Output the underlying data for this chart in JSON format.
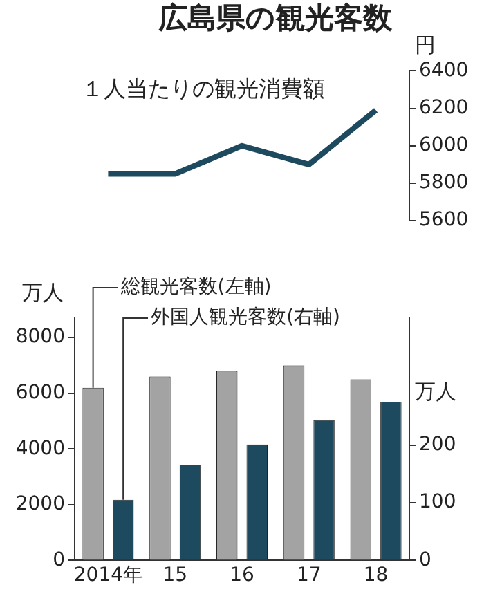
{
  "chart_data": [
    {
      "type": "line",
      "title": "広島県の観光客数",
      "subtitle": "１人当たりの観光消費額",
      "ylabel": "円",
      "categories": [
        null,
        null,
        null,
        null,
        null
      ],
      "series": [
        {
          "color": "#1d4a5e",
          "values": [
            5850,
            5850,
            6000,
            5900,
            6190
          ]
        }
      ],
      "ylim": [
        5600,
        6400
      ],
      "yticks": [
        5600,
        5800,
        6000,
        6200,
        6400
      ],
      "tick_labels": "y",
      "grid": false,
      "legend": false,
      "marker": "none",
      "line_style": "solid"
    },
    {
      "type": "bar",
      "ylabel": "万人",
      "y2label": "万人",
      "categories": [
        "2014年",
        "15",
        "16",
        "17",
        "18"
      ],
      "series": [
        {
          "name": "総観光客数(左軸)",
          "color": "#a3a3a3",
          "values": [
            6200,
            6600,
            6800,
            7000,
            6500
          ]
        },
        {
          "name": "外国人観光客数(右軸)",
          "color": "#1d4a5e",
          "values": [
            105,
            166,
            201,
            243,
            275
          ],
          "axis": "y2"
        }
      ],
      "ylim": [
        0,
        8700
      ],
      "yticks": [
        0,
        2000,
        4000,
        6000,
        8000
      ],
      "y2lim": [
        0,
        420
      ],
      "y2ticks": [
        0,
        100,
        200
      ],
      "grid": false,
      "legend": false
    }
  ]
}
